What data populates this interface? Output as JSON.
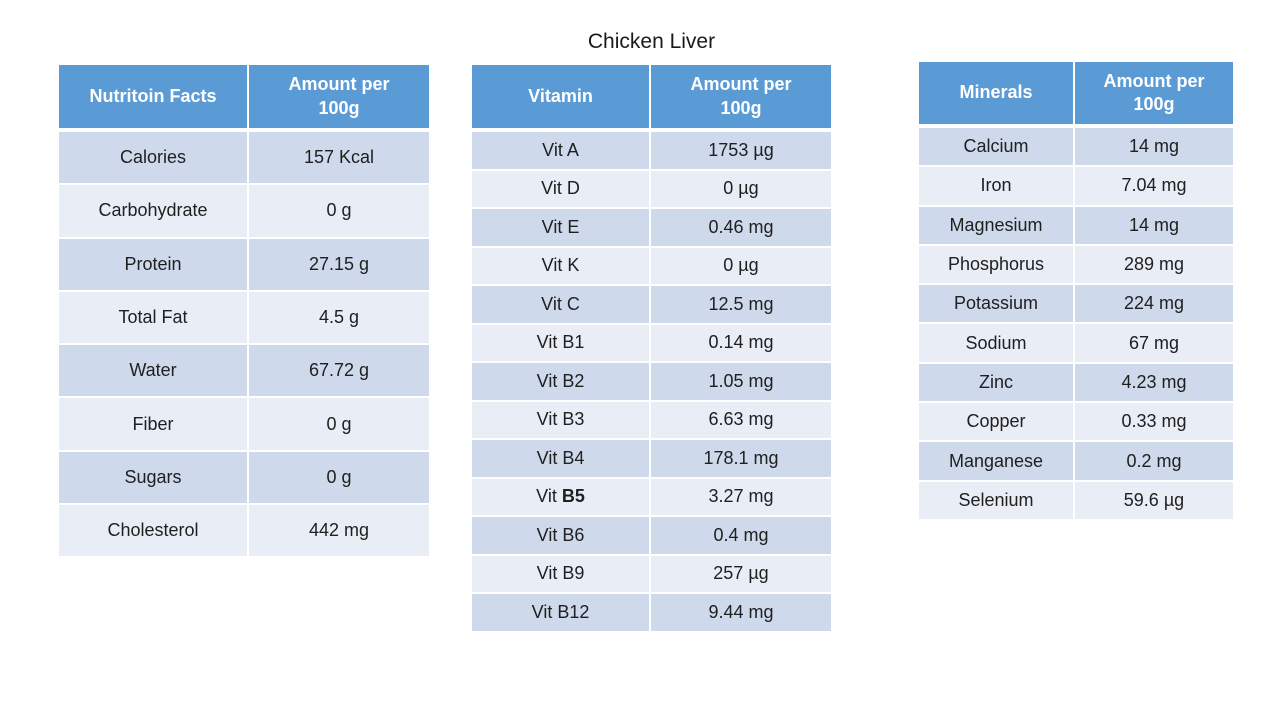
{
  "page": {
    "title": "Chicken Liver"
  },
  "colors": {
    "background": "#FFFFFF",
    "header_bg": "#5B9BD5",
    "header_text": "#FFFFFF",
    "band_dark": "#CEDAEC",
    "band_light": "#E9EEF6",
    "body_text": "#202020"
  },
  "tables": [
    {
      "name": "nutrition-facts",
      "headers": [
        "Nutritoin Facts",
        "Amount per 100g"
      ],
      "rows": [
        {
          "label": "Calories",
          "value": "157 Kcal"
        },
        {
          "label": "Carbohydrate",
          "value": "0 g"
        },
        {
          "label": "Protein",
          "value": "27.15 g"
        },
        {
          "label": "Total Fat",
          "value": "4.5 g"
        },
        {
          "label": "Water",
          "value": "67.72 g"
        },
        {
          "label": "Fiber",
          "value": "0 g"
        },
        {
          "label": "Sugars",
          "value": "0 g"
        },
        {
          "label": "Cholesterol",
          "value": "442 mg"
        }
      ]
    },
    {
      "name": "vitamins",
      "headers": [
        "Vitamin",
        "Amount per 100g"
      ],
      "rows": [
        {
          "label": "Vit A",
          "value": "1753 µg"
        },
        {
          "label": "Vit D",
          "value": "0 µg"
        },
        {
          "label": "Vit E",
          "value": "0.46 mg"
        },
        {
          "label": "Vit K",
          "value": "0 µg"
        },
        {
          "label": "Vit C",
          "value": "12.5 mg"
        },
        {
          "label": "Vit B1",
          "value": "0.14 mg"
        },
        {
          "label": "Vit B2",
          "value": "1.05 mg"
        },
        {
          "label": "Vit B3",
          "value": "6.63 mg"
        },
        {
          "label": "Vit B4",
          "value": "178.1 mg"
        },
        {
          "label": "Vit ",
          "label_bold": "B5",
          "value": "3.27 mg"
        },
        {
          "label": "Vit B6",
          "value": "0.4 mg"
        },
        {
          "label": "Vit B9",
          "value": "257 µg"
        },
        {
          "label": "Vit B12",
          "value": "9.44 mg"
        }
      ]
    },
    {
      "name": "minerals",
      "headers": [
        "Minerals",
        "Amount per 100g"
      ],
      "rows": [
        {
          "label": "Calcium",
          "value": "14 mg"
        },
        {
          "label": "Iron",
          "value": "7.04 mg"
        },
        {
          "label": "Magnesium",
          "value": "14 mg"
        },
        {
          "label": "Phosphorus",
          "value": "289 mg"
        },
        {
          "label": "Potassium",
          "value": "224 mg"
        },
        {
          "label": "Sodium",
          "value": "67 mg"
        },
        {
          "label": "Zinc",
          "value": "4.23 mg"
        },
        {
          "label": "Copper",
          "value": "0.33 mg"
        },
        {
          "label": "Manganese",
          "value": "0.2 mg"
        },
        {
          "label": "Selenium",
          "value": "59.6 µg"
        }
      ]
    }
  ]
}
